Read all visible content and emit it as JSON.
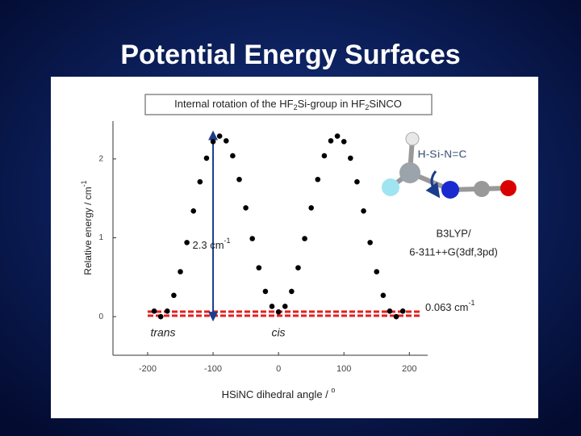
{
  "slide_title": "Potential Energy Surfaces",
  "chart_data": {
    "type": "scatter",
    "title_parts": [
      "Internal rotation of the HF",
      "2",
      "Si-group in HF",
      "2",
      "SiNCO"
    ],
    "x": [
      -190,
      -180,
      -170,
      -160,
      -150,
      -140,
      -130,
      -120,
      -110,
      -100,
      -90,
      -80,
      -70,
      -60,
      -50,
      -40,
      -30,
      -20,
      -10,
      0,
      10,
      20,
      30,
      40,
      50,
      60,
      70,
      80,
      90,
      100,
      110,
      120,
      130,
      140,
      150,
      160,
      170,
      180,
      190
    ],
    "y": [
      0.07,
      0,
      0.07,
      0.27,
      0.57,
      0.94,
      1.34,
      1.71,
      2.01,
      2.22,
      2.29,
      2.23,
      2.04,
      1.74,
      1.38,
      0.99,
      0.62,
      0.32,
      0.13,
      0.06,
      0.13,
      0.32,
      0.62,
      0.99,
      1.38,
      1.74,
      2.04,
      2.23,
      2.29,
      2.22,
      2.01,
      1.71,
      1.34,
      0.94,
      0.57,
      0.27,
      0.07,
      0,
      0.07
    ],
    "color": "#000000",
    "xlim": [
      -253,
      228
    ],
    "ylim": [
      -0.49,
      2.48
    ],
    "xticks": [
      -200,
      -100,
      0,
      100,
      200
    ],
    "yticks": [
      0,
      1,
      2
    ],
    "x_label": "HSiNC dihedral angle / ",
    "x_label_sup": "o",
    "y_label": "Relative energy / cm",
    "y_label_sup": "-1",
    "barrier": {
      "text": "2.3 cm",
      "sup": "-1",
      "x": -100,
      "value": 2.3
    },
    "cis_offset": {
      "text": "0.063 cm",
      "sup": "-1",
      "value": 0.063,
      "color": "#e02020"
    },
    "trans_label": "trans",
    "cis_label": "cis",
    "dihedral_label": "H-Si-N=C",
    "method_lines": [
      "B3LYP/",
      "6-311++G(3df,3pd)"
    ]
  }
}
